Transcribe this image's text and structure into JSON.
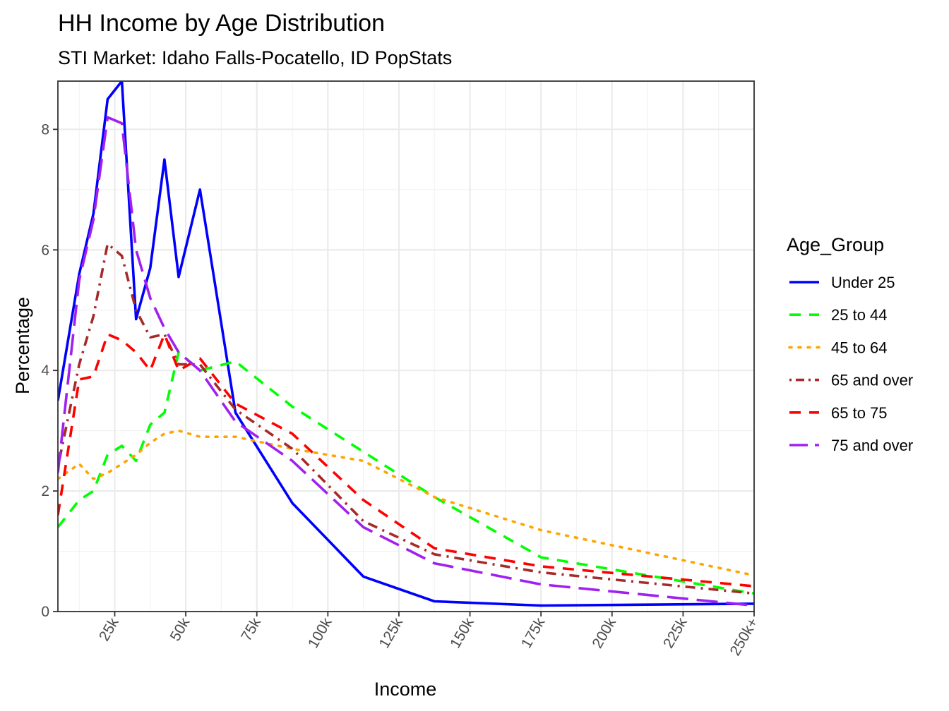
{
  "chart_data": {
    "type": "line",
    "title": "HH Income by Age Distribution",
    "subtitle": "STI Market: Idaho Falls-Pocatello, ID PopStats",
    "xlabel": "Income",
    "ylabel": "Percentage",
    "xlim": [
      5,
      250
    ],
    "ylim": [
      0,
      8.8
    ],
    "x_ticks": [
      {
        "value": 25,
        "label": "25k"
      },
      {
        "value": 50,
        "label": "50k"
      },
      {
        "value": 75,
        "label": "75k"
      },
      {
        "value": 100,
        "label": "100k"
      },
      {
        "value": 125,
        "label": "125k"
      },
      {
        "value": 150,
        "label": "150k"
      },
      {
        "value": 175,
        "label": "175k"
      },
      {
        "value": 200,
        "label": "200k"
      },
      {
        "value": 225,
        "label": "225k"
      },
      {
        "value": 250,
        "label": "250k+"
      }
    ],
    "y_ticks": [
      {
        "value": 0,
        "label": "0"
      },
      {
        "value": 2,
        "label": "2"
      },
      {
        "value": 4,
        "label": "4"
      },
      {
        "value": 6,
        "label": "6"
      },
      {
        "value": 8,
        "label": "8"
      }
    ],
    "grid": true,
    "legend": {
      "title": "Age_Group",
      "position": "right"
    },
    "x": [
      5,
      12.5,
      17.5,
      22.5,
      27.5,
      32.5,
      37.5,
      42.5,
      47.5,
      55,
      67.5,
      87.5,
      112.5,
      137.5,
      175,
      250
    ],
    "series": [
      {
        "name": "Under 25",
        "color": "#0000ff",
        "dash": "solid",
        "values": [
          3.5,
          5.6,
          6.6,
          8.5,
          8.8,
          4.85,
          5.7,
          7.5,
          5.55,
          7.0,
          3.3,
          1.8,
          0.58,
          0.17,
          0.1,
          0.13
        ]
      },
      {
        "name": "25 to 44",
        "color": "#00ff00",
        "dash": "dashed",
        "values": [
          1.4,
          1.85,
          2.0,
          2.6,
          2.75,
          2.5,
          3.1,
          3.3,
          4.3,
          4.0,
          4.15,
          3.4,
          2.65,
          1.9,
          0.9,
          0.3
        ]
      },
      {
        "name": "45 to 64",
        "color": "#ffa500",
        "dash": "dotted",
        "values": [
          2.2,
          2.45,
          2.2,
          2.3,
          2.45,
          2.6,
          2.8,
          2.95,
          3.0,
          2.9,
          2.9,
          2.7,
          2.5,
          1.9,
          1.35,
          0.6
        ]
      },
      {
        "name": "65 and over",
        "color": "#a52a2a",
        "dash": "dotdash",
        "values": [
          2.4,
          4.1,
          4.9,
          6.1,
          5.9,
          5.0,
          4.55,
          4.6,
          4.1,
          4.1,
          3.35,
          2.7,
          1.5,
          0.95,
          0.65,
          0.3
        ]
      },
      {
        "name": "65 to 75",
        "color": "#ff0000",
        "dash": "dashed",
        "values": [
          1.6,
          3.85,
          3.9,
          4.6,
          4.5,
          4.3,
          4.0,
          4.6,
          4.0,
          4.2,
          3.45,
          2.95,
          1.85,
          1.05,
          0.75,
          0.42
        ]
      },
      {
        "name": "75 and over",
        "color": "#a020f0",
        "dash": "longdash",
        "values": [
          2.3,
          5.5,
          6.5,
          8.2,
          8.1,
          6.0,
          5.2,
          4.7,
          4.3,
          4.0,
          3.15,
          2.5,
          1.4,
          0.8,
          0.45,
          0.1
        ]
      }
    ]
  }
}
